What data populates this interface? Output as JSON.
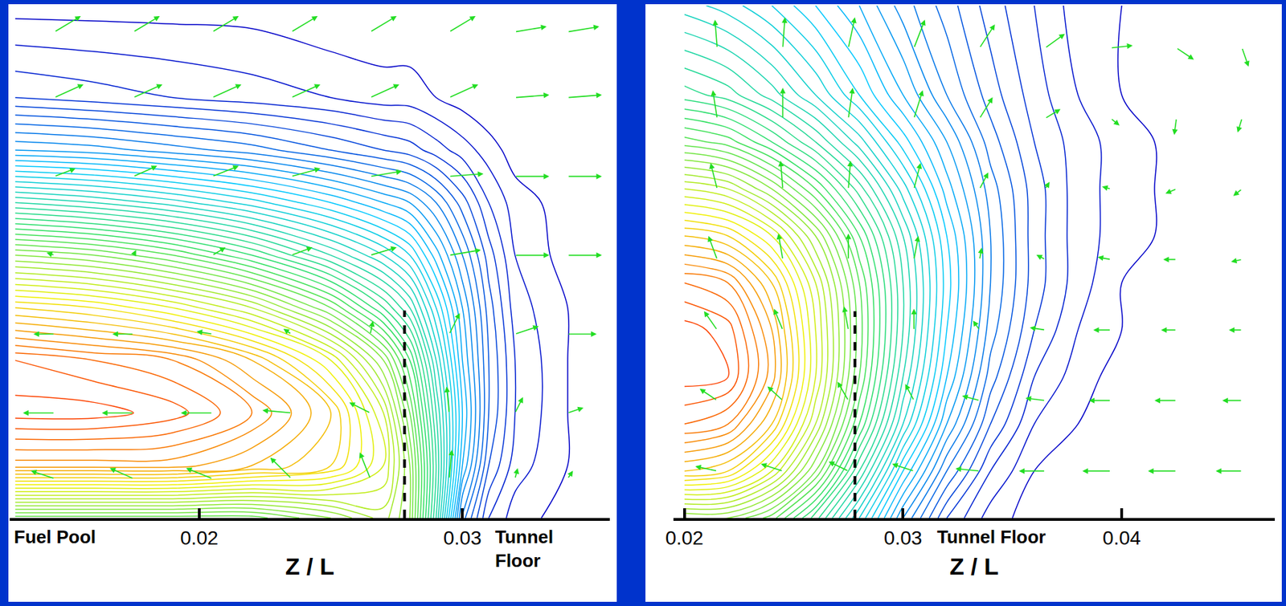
{
  "chart_data": [
    {
      "type": "contour_vector",
      "x_label": "Z / L",
      "xlim": [
        0.0128,
        0.0356
      ],
      "ylim": [
        0,
        0.0195
      ],
      "xticks": [
        0.02,
        0.03
      ],
      "yticks": [],
      "tick_labels": "x",
      "grid": false,
      "annotations": [
        {
          "text": "Fuel Pool",
          "x": 0.0129
        },
        {
          "text": "Tunnel Floor",
          "x": 0.0312
        }
      ],
      "reference_line": {
        "x": 0.0278,
        "y": [
          0,
          0.0079
        ],
        "line_style": "dash",
        "color": "#000000"
      },
      "field": {
        "x": [
          0.013,
          0.016,
          0.019,
          0.022,
          0.025,
          0.027,
          0.028,
          0.029,
          0.03,
          0.031,
          0.032,
          0.034,
          0.036
        ],
        "y": [
          0,
          0.002,
          0.004,
          0.006,
          0.008,
          0.01,
          0.012,
          0.014,
          0.016,
          0.0195
        ],
        "z": [
          [
            0.55,
            0.55,
            0.55,
            0.55,
            0.6,
            0.65,
            0.6,
            0.4,
            0.15,
            0.06,
            0.03,
            0.01,
            0
          ],
          [
            0.85,
            0.85,
            0.85,
            0.82,
            0.78,
            0.7,
            0.6,
            0.42,
            0.22,
            0.1,
            0.05,
            0.02,
            0
          ],
          [
            0.95,
            0.95,
            0.93,
            0.88,
            0.8,
            0.68,
            0.56,
            0.4,
            0.24,
            0.12,
            0.06,
            0.02,
            0
          ],
          [
            0.92,
            0.9,
            0.88,
            0.82,
            0.72,
            0.6,
            0.5,
            0.36,
            0.22,
            0.12,
            0.06,
            0.02,
            0
          ],
          [
            0.78,
            0.76,
            0.72,
            0.66,
            0.56,
            0.46,
            0.4,
            0.3,
            0.2,
            0.11,
            0.05,
            0.02,
            0
          ],
          [
            0.6,
            0.58,
            0.54,
            0.48,
            0.4,
            0.34,
            0.3,
            0.23,
            0.16,
            0.09,
            0.04,
            0.01,
            0
          ],
          [
            0.4,
            0.38,
            0.35,
            0.31,
            0.26,
            0.22,
            0.2,
            0.16,
            0.11,
            0.06,
            0.03,
            0.01,
            0
          ],
          [
            0.2,
            0.19,
            0.17,
            0.15,
            0.12,
            0.1,
            0.09,
            0.07,
            0.05,
            0.03,
            0.01,
            0,
            0
          ],
          [
            0.08,
            0.07,
            0.06,
            0.05,
            0.04,
            0.03,
            0.03,
            0.02,
            0.01,
            0,
            0,
            0,
            0
          ],
          [
            0.01,
            0.01,
            0.01,
            0.01,
            0,
            0,
            0,
            0,
            0,
            0,
            0,
            0,
            0
          ]
        ],
        "levels": {
          "start": 0.02,
          "end": 0.98,
          "size": 0.02
        },
        "color_range": [
          0,
          1
        ],
        "colors": [
          "#0000c8",
          "#00c8ff",
          "#30e060",
          "#f0f000",
          "#ff2000"
        ]
      },
      "vectors": {
        "color": "#22dd22",
        "x": [
          0.0145,
          0.0175,
          0.0205,
          0.0235,
          0.0265,
          0.0295,
          0.032,
          0.034
        ],
        "y": [
          0.0185,
          0.016,
          0.013,
          0.01,
          0.007,
          0.004,
          0.0015
        ],
        "u": [
          [
            0.001,
            0.001,
            0.001,
            0.001,
            0.001,
            0.001,
            0.0012,
            0.0012
          ],
          [
            0.0011,
            0.0011,
            0.0011,
            0.0011,
            0.0011,
            0.0011,
            0.0013,
            0.0013
          ],
          [
            0.0008,
            0.0009,
            0.001,
            0.0011,
            0.0012,
            0.0013,
            0.0013,
            0.0013
          ],
          [
            -0.0003,
            0.0001,
            0.0005,
            0.0008,
            0.001,
            0.0012,
            0.0013,
            0.0013
          ],
          [
            -0.0008,
            -0.0008,
            -0.0006,
            -0.0003,
            0.0001,
            0.0004,
            0.0009,
            0.0011
          ],
          [
            -0.0012,
            -0.0012,
            -0.0012,
            -0.0011,
            -0.0008,
            -0.0001,
            0.0003,
            0.0006
          ],
          [
            -0.0009,
            -0.0009,
            -0.001,
            -0.0008,
            -0.0004,
            0.0001,
            0.0001,
            0.0002
          ]
        ],
        "v": [
          [
            0.0006,
            0.0006,
            0.0006,
            0.0006,
            0.0006,
            0.0006,
            0.0002,
            0.0002
          ],
          [
            0.0005,
            0.0005,
            0.0005,
            0.0005,
            0.0005,
            0.0005,
            0.0001,
            0.0001
          ],
          [
            0.0003,
            0.0004,
            0.0004,
            0.0003,
            0.0002,
            0.0001,
            0,
            0
          ],
          [
            0.0001,
            0.0002,
            0.0003,
            0.0003,
            0.0003,
            0.0002,
            0,
            0
          ],
          [
            0,
            0,
            0.0001,
            0.0002,
            0.0005,
            0.0008,
            0.0003,
            0
          ],
          [
            0,
            0,
            0,
            0.0001,
            0.0004,
            0.001,
            0.0006,
            0.0002
          ],
          [
            0.0003,
            0.0004,
            0.0004,
            0.0008,
            0.001,
            0.0011,
            0.0004,
            0.0003
          ]
        ]
      }
    },
    {
      "type": "contour_vector",
      "x_label": "Z / L",
      "xlim": [
        0.0195,
        0.047
      ],
      "ylim": [
        0,
        0.0218
      ],
      "xticks": [
        0.02,
        0.03,
        0.04
      ],
      "yticks": [],
      "tick_labels": "x",
      "grid": false,
      "annotations": [
        {
          "text": "Tunnel Floor",
          "x": 0.0315
        }
      ],
      "reference_line": {
        "x": 0.0278,
        "y": [
          0,
          0.0088
        ],
        "line_style": "dash",
        "color": "#000000"
      },
      "field": {
        "x": [
          0.02,
          0.022,
          0.024,
          0.026,
          0.028,
          0.03,
          0.032,
          0.034,
          0.036,
          0.038,
          0.04,
          0.043,
          0.047
        ],
        "y": [
          0,
          0.002,
          0.004,
          0.006,
          0.008,
          0.01,
          0.012,
          0.014,
          0.016,
          0.018,
          0.0218
        ],
        "z": [
          [
            0.6,
            0.6,
            0.55,
            0.45,
            0.32,
            0.18,
            0.08,
            0.03,
            0.01,
            0,
            0,
            0,
            0
          ],
          [
            0.8,
            0.78,
            0.7,
            0.58,
            0.42,
            0.26,
            0.14,
            0.06,
            0.02,
            0.01,
            0,
            0,
            0
          ],
          [
            0.9,
            0.88,
            0.8,
            0.66,
            0.5,
            0.34,
            0.2,
            0.1,
            0.04,
            0.02,
            0.01,
            0,
            0
          ],
          [
            0.95,
            0.94,
            0.85,
            0.7,
            0.54,
            0.38,
            0.24,
            0.13,
            0.06,
            0.03,
            0.01,
            0,
            0
          ],
          [
            0.95,
            0.93,
            0.84,
            0.7,
            0.55,
            0.4,
            0.26,
            0.15,
            0.08,
            0.04,
            0.02,
            0.01,
            0
          ],
          [
            0.9,
            0.88,
            0.8,
            0.68,
            0.54,
            0.4,
            0.27,
            0.16,
            0.09,
            0.05,
            0.02,
            0.01,
            0
          ],
          [
            0.8,
            0.78,
            0.72,
            0.62,
            0.5,
            0.38,
            0.26,
            0.16,
            0.09,
            0.05,
            0.03,
            0.01,
            0
          ],
          [
            0.68,
            0.66,
            0.6,
            0.52,
            0.43,
            0.33,
            0.23,
            0.15,
            0.09,
            0.05,
            0.03,
            0.01,
            0
          ],
          [
            0.55,
            0.53,
            0.48,
            0.42,
            0.35,
            0.27,
            0.2,
            0.13,
            0.08,
            0.05,
            0.03,
            0.01,
            0
          ],
          [
            0.45,
            0.43,
            0.39,
            0.34,
            0.28,
            0.22,
            0.16,
            0.11,
            0.07,
            0.04,
            0.02,
            0.01,
            0
          ],
          [
            0.35,
            0.33,
            0.3,
            0.26,
            0.22,
            0.17,
            0.13,
            0.09,
            0.06,
            0.03,
            0.02,
            0.01,
            0
          ]
        ],
        "levels": {
          "start": 0.02,
          "end": 0.98,
          "size": 0.02
        },
        "color_range": [
          0,
          1
        ],
        "colors": [
          "#0000c8",
          "#00c8ff",
          "#30e060",
          "#f0f000",
          "#ff2000"
        ]
      },
      "vectors": {
        "color": "#22dd22",
        "x": [
          0.0215,
          0.0245,
          0.0275,
          0.0305,
          0.0335,
          0.0365,
          0.0395,
          0.0425,
          0.0455
        ],
        "y": [
          0.02,
          0.017,
          0.014,
          0.011,
          0.008,
          0.005,
          0.002
        ],
        "u": [
          [
            -0.0001,
            0.0001,
            0.0003,
            0.0005,
            0.0007,
            0.0009,
            0.001,
            0.0008,
            0.0003
          ],
          [
            -0.0002,
            0,
            0.0002,
            0.0004,
            0.0006,
            0.0007,
            0.0004,
            -0.0001,
            -0.0002
          ],
          [
            -0.0003,
            -0.0001,
            0.0001,
            0.0003,
            0.0004,
            0.0002,
            -0.0004,
            -0.0005,
            -0.0004
          ],
          [
            -0.0004,
            -0.0002,
            0,
            0.0002,
            0.0001,
            -0.0004,
            -0.0006,
            -0.0006,
            -0.0005
          ],
          [
            -0.0006,
            -0.0004,
            -0.0002,
            0,
            -0.0003,
            -0.0007,
            -0.0008,
            -0.0007,
            -0.0006
          ],
          [
            -0.0008,
            -0.0007,
            -0.0005,
            -0.0004,
            -0.0008,
            -0.0009,
            -0.001,
            -0.001,
            -0.0009
          ],
          [
            -0.001,
            -0.001,
            -0.0009,
            -0.001,
            -0.0011,
            -0.0012,
            -0.0013,
            -0.0013,
            -0.0012
          ]
        ],
        "v": [
          [
            0.0012,
            0.0013,
            0.0013,
            0.0012,
            0.001,
            0.0006,
            0.0001,
            -0.0005,
            -0.0008
          ],
          [
            0.0012,
            0.0013,
            0.0013,
            0.0012,
            0.0009,
            0.0004,
            -0.0003,
            -0.0007,
            -0.0006
          ],
          [
            0.0011,
            0.0012,
            0.0012,
            0.0011,
            0.0007,
            0.0003,
            0.0001,
            -0.0002,
            -0.0003
          ],
          [
            0.001,
            0.0011,
            0.0011,
            0.001,
            0.0005,
            0.0002,
            0.0001,
            0,
            -0.0001
          ],
          [
            0.0008,
            0.0009,
            0.001,
            0.0009,
            0.0004,
            0.0001,
            0,
            0,
            0
          ],
          [
            0.0005,
            0.0006,
            0.0008,
            0.0007,
            0.0002,
            0.0001,
            0,
            0,
            0
          ],
          [
            0.0002,
            0.0003,
            0.0004,
            0.0003,
            0.0001,
            0,
            0,
            0,
            0
          ]
        ]
      }
    }
  ]
}
